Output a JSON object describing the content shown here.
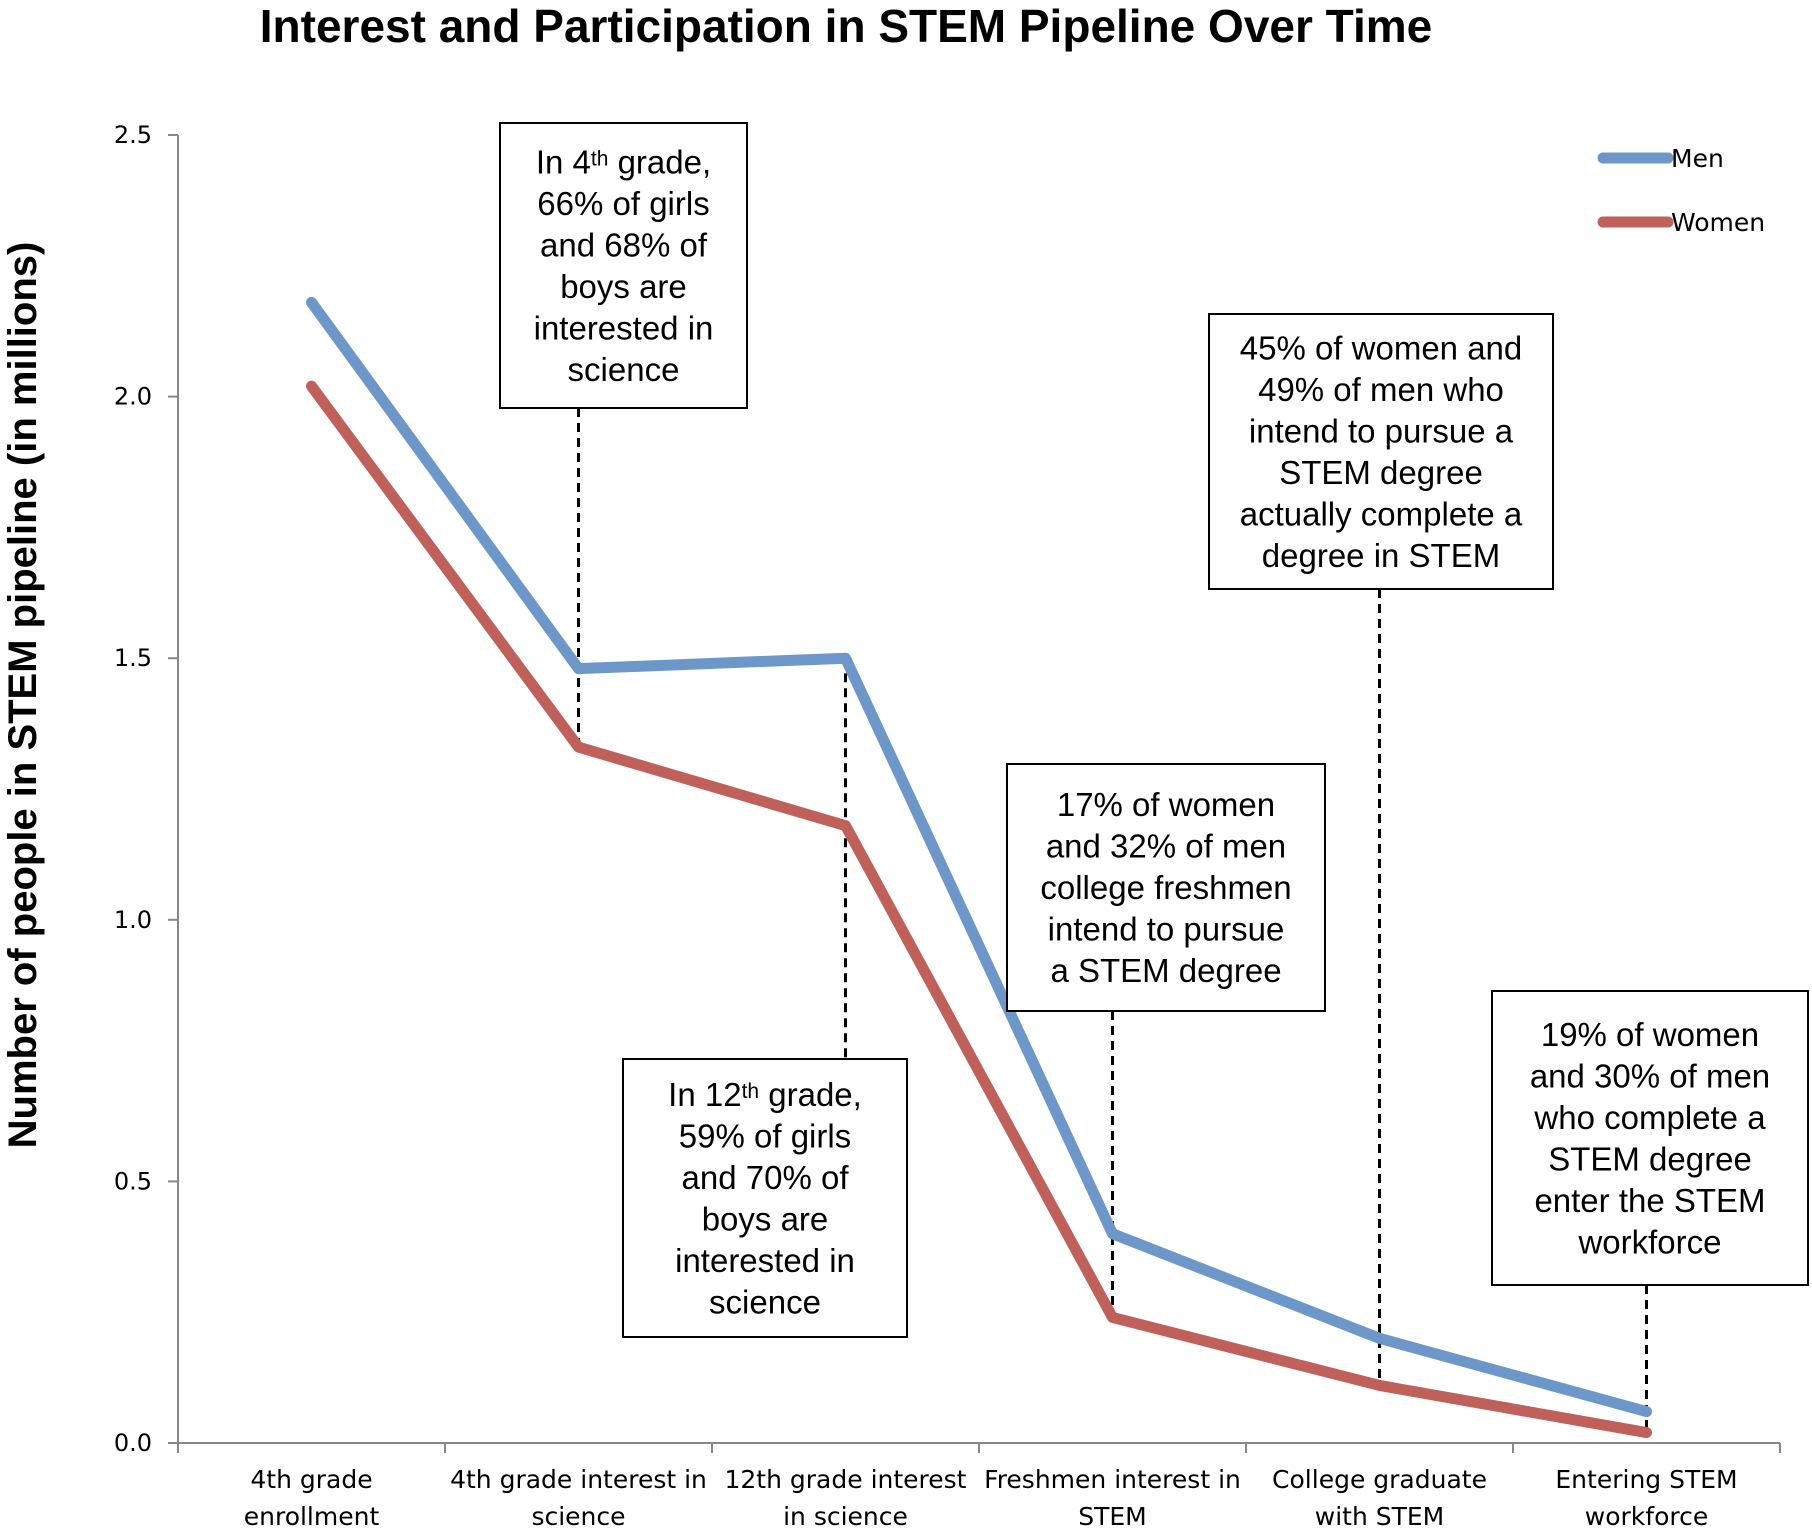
{
  "chart_data": {
    "type": "line",
    "title": "Interest and Participation in STEM Pipeline Over Time",
    "xlabel": "",
    "ylabel": "Number of people in STEM pipeline (in millions)",
    "ylim": [
      0,
      2.5
    ],
    "yticks": [
      "0.0",
      "0.5",
      "1.0",
      "1.5",
      "2.0",
      "2.5"
    ],
    "categories": [
      [
        "4th grade",
        "enrollment"
      ],
      [
        "4th grade interest in",
        "science"
      ],
      [
        "12th grade interest",
        "in science"
      ],
      [
        "Freshmen interest in",
        "STEM"
      ],
      [
        "College graduate",
        "with STEM"
      ],
      [
        "Entering STEM",
        "workforce"
      ]
    ],
    "series": [
      {
        "name": "Men",
        "color": "#6d97c9",
        "values": [
          2.18,
          1.48,
          1.5,
          0.4,
          0.2,
          0.06
        ]
      },
      {
        "name": "Women",
        "color": "#c0605b",
        "values": [
          2.02,
          1.33,
          1.18,
          0.24,
          0.11,
          0.02
        ]
      }
    ],
    "legend": {
      "position": "top-right",
      "entries": [
        "Men",
        "Women"
      ]
    },
    "annotations": [
      {
        "category_index": 1,
        "lines": [
          [
            "In 4",
            "th",
            " grade,"
          ],
          [
            "66% of girls"
          ],
          [
            "and 68% of"
          ],
          [
            "boys are"
          ],
          [
            "interested in"
          ],
          [
            "science"
          ]
        ]
      },
      {
        "category_index": 2,
        "lines": [
          [
            "In 12",
            "th",
            " grade,"
          ],
          [
            "59% of girls"
          ],
          [
            "and 70% of"
          ],
          [
            "boys are"
          ],
          [
            "interested in"
          ],
          [
            "science"
          ]
        ]
      },
      {
        "category_index": 3,
        "lines": [
          [
            "17% of women"
          ],
          [
            "and 32% of men"
          ],
          [
            "college freshmen"
          ],
          [
            "intend to pursue"
          ],
          [
            "a STEM degree"
          ]
        ]
      },
      {
        "category_index": 4,
        "lines": [
          [
            "45% of women and"
          ],
          [
            "49% of men who"
          ],
          [
            "intend to pursue a"
          ],
          [
            "STEM degree"
          ],
          [
            "actually complete a"
          ],
          [
            "degree in STEM"
          ]
        ]
      },
      {
        "category_index": 5,
        "lines": [
          [
            "19% of women"
          ],
          [
            "and 30% of men"
          ],
          [
            "who complete a"
          ],
          [
            "STEM degree"
          ],
          [
            "enter the STEM"
          ],
          [
            "workforce"
          ]
        ]
      }
    ]
  }
}
